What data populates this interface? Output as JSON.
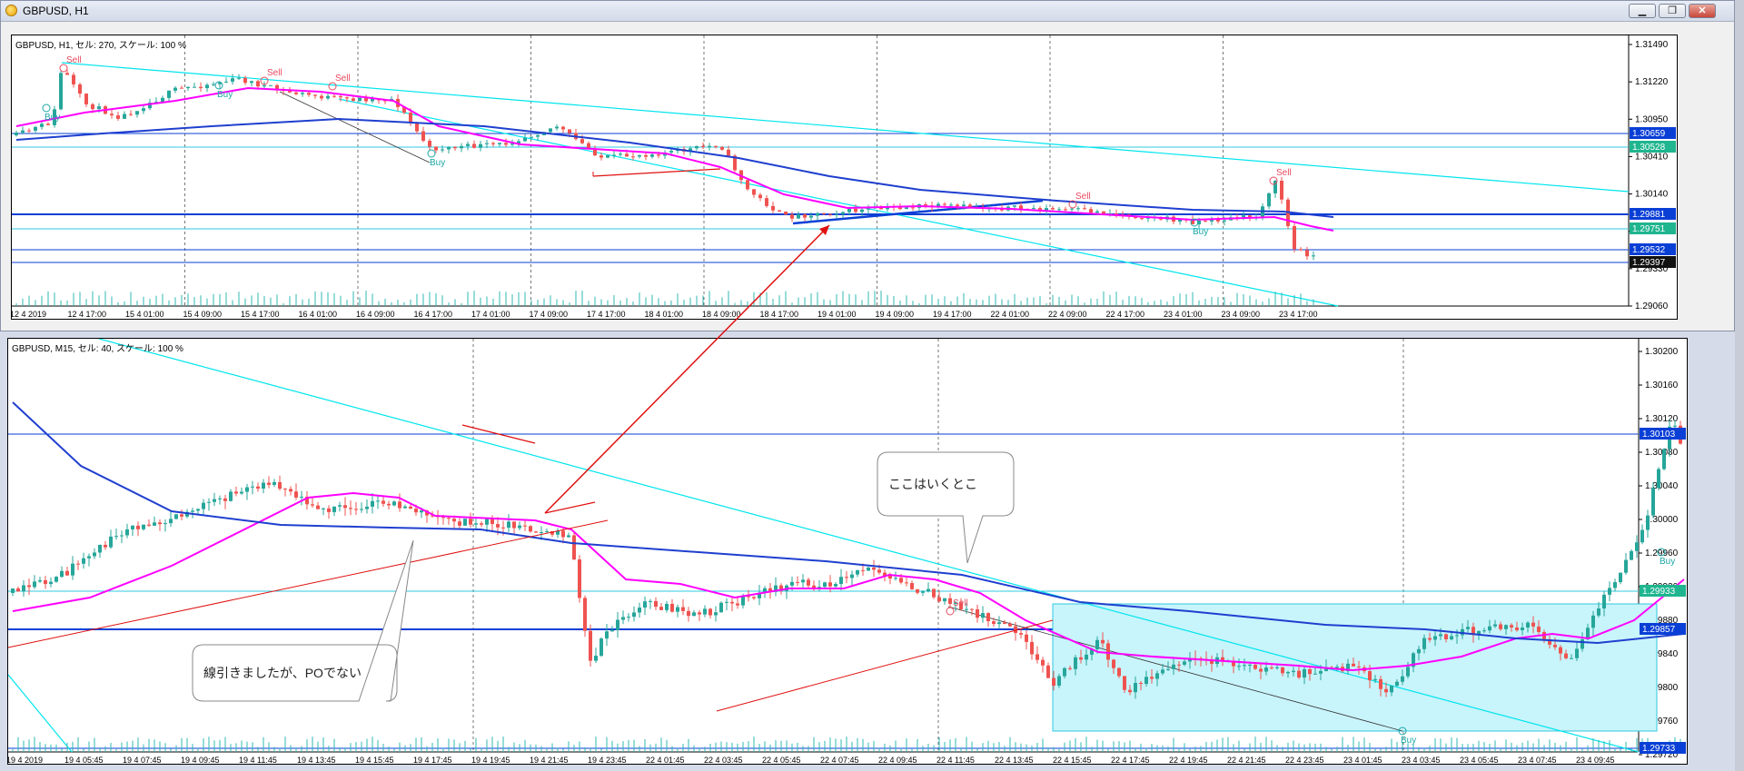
{
  "window": {
    "title": "GBPUSD, H1",
    "minimize_label": "▁",
    "restore_label": "❐",
    "close_label": "✕",
    "icon": "gold-coin-icon"
  },
  "colors": {
    "candle_up": "#26a69a",
    "candle_down": "#ef5350",
    "ma_fast": "#ff00ff",
    "ma_slow": "#1f3fcf",
    "trendline_cyan": "#00e5ee",
    "level_blue": "#0a3fd6",
    "level_cyan": "#2fc9e0",
    "annotation_red": "#e01010",
    "box_fill": "#c8f4fb",
    "buy_label": "#1aa6a6",
    "sell_label": "#e84a5f"
  },
  "chart_h1": {
    "caption": "GBPUSD, H1, セル: 270, スケール: 100 %",
    "y_ticks": [
      "1.31490",
      "1.31220",
      "1.30950",
      "1.30410",
      "1.30140",
      "1.29600",
      "1.29330",
      "1.29060"
    ],
    "x_labels": [
      "12 4 2019",
      "12 4 17:00",
      "15 4 01:00",
      "15 4 09:00",
      "15 4 17:00",
      "16 4 01:00",
      "16 4 09:00",
      "16 4 17:00",
      "17 4 01:00",
      "17 4 09:00",
      "17 4 17:00",
      "18 4 01:00",
      "18 4 09:00",
      "18 4 17:00",
      "19 4 01:00",
      "19 4 09:00",
      "19 4 17:00",
      "22 4 01:00",
      "22 4 09:00",
      "22 4 17:00",
      "23 4 01:00",
      "23 4 09:00",
      "23 4 17:00"
    ],
    "price_tags": [
      {
        "text": "1.30659",
        "style": "blue"
      },
      {
        "text": "1.30528",
        "style": "cyan"
      },
      {
        "text": "1.29881",
        "style": "blue"
      },
      {
        "text": "1.29751",
        "style": "cyan"
      },
      {
        "text": "1.29532",
        "style": "blue"
      },
      {
        "text": "1.29397",
        "style": "black"
      }
    ],
    "signals": [
      {
        "text": "Sell",
        "kind": "sell"
      },
      {
        "text": "Buy",
        "kind": "buy"
      },
      {
        "text": "Buy",
        "kind": "buy"
      },
      {
        "text": "Sell",
        "kind": "sell"
      },
      {
        "text": "Sell",
        "kind": "sell"
      },
      {
        "text": "Buy",
        "kind": "buy"
      },
      {
        "text": "Sell",
        "kind": "sell"
      },
      {
        "text": "Buy",
        "kind": "buy"
      },
      {
        "text": "Sell",
        "kind": "sell"
      }
    ]
  },
  "chart_m15": {
    "caption": "GBPUSD, M15, セル: 40, スケール: 100 %",
    "y_ticks": [
      "1.30200",
      "1.30160",
      "1.30120",
      "1.30080",
      "1.30040",
      "1.30000",
      "1.29960",
      "1.29920",
      "1.29880",
      "1.29840",
      "1.29800",
      "1.29760",
      "1.29720"
    ],
    "x_labels": [
      "19 4 2019",
      "19 4 05:45",
      "19 4 07:45",
      "19 4 09:45",
      "19 4 11:45",
      "19 4 13:45",
      "19 4 15:45",
      "19 4 17:45",
      "19 4 19:45",
      "19 4 21:45",
      "19 4 23:45",
      "22 4 01:45",
      "22 4 03:45",
      "22 4 05:45",
      "22 4 07:45",
      "22 4 09:45",
      "22 4 11:45",
      "22 4 13:45",
      "22 4 15:45",
      "22 4 17:45",
      "22 4 19:45",
      "22 4 21:45",
      "22 4 23:45",
      "23 4 01:45",
      "23 4 03:45",
      "23 4 05:45",
      "23 4 07:45",
      "23 4 09:45"
    ],
    "price_tags": [
      {
        "text": "1.30103",
        "style": "blue"
      },
      {
        "text": "1.29933",
        "style": "cyan"
      },
      {
        "text": "1.29857",
        "style": "blue"
      },
      {
        "text": "1.29733",
        "style": "blue"
      }
    ],
    "signals": [
      {
        "text": "Sell",
        "kind": "sell"
      },
      {
        "text": "Buy",
        "kind": "buy"
      },
      {
        "text": "Buy",
        "kind": "buy"
      }
    ],
    "callouts": [
      {
        "text": "ここはいくとこ"
      },
      {
        "text": "線引きましたが、POでない"
      }
    ]
  }
}
